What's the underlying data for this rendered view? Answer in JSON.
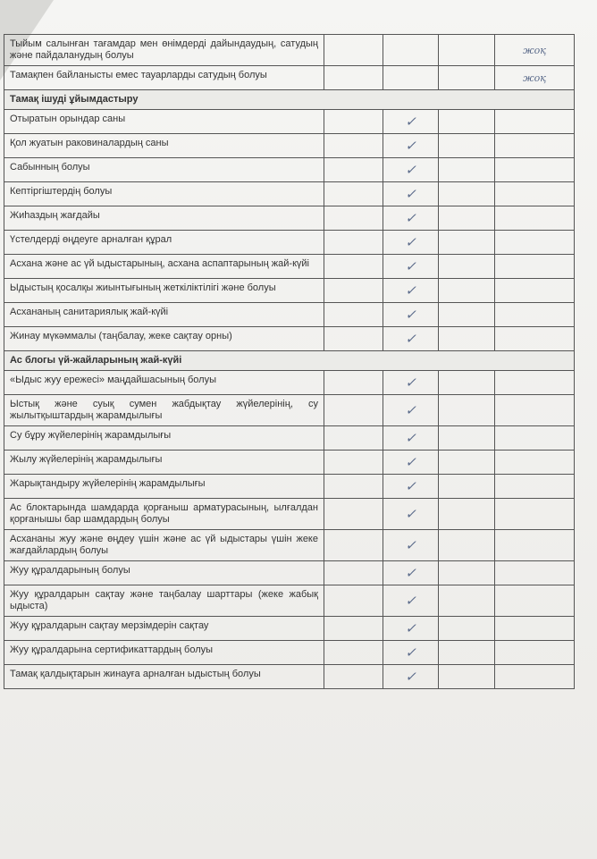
{
  "table": {
    "rows": [
      {
        "label": "Тыйым салынған тағамдар мен өнімдерді дайындаудың, сатудың және пайдаланудың болуы",
        "cells": [
          null,
          null,
          null,
          "жоқ"
        ]
      },
      {
        "label": "Тамақпен байланысты емес тауарларды сатудың болуы",
        "cells": [
          null,
          null,
          null,
          "жоқ"
        ]
      },
      {
        "section": "Тамақ ішуді ұйымдастыру"
      },
      {
        "label": "Отыратын орындар саны",
        "cells": [
          null,
          "✓",
          null,
          null
        ]
      },
      {
        "label": "Қол жуатын раковиналардың саны",
        "cells": [
          null,
          "✓",
          null,
          null
        ]
      },
      {
        "label": "Сабынның болуы",
        "cells": [
          null,
          "✓",
          null,
          null
        ]
      },
      {
        "label": "Кептіргіштердің болуы",
        "cells": [
          null,
          "✓",
          null,
          null
        ]
      },
      {
        "label": "Жиһаздың жағдайы",
        "cells": [
          null,
          "✓",
          null,
          null
        ]
      },
      {
        "label": "Үстелдерді өңдеуге арналған құрал",
        "cells": [
          null,
          "✓",
          null,
          null
        ]
      },
      {
        "label": "Асхана және ас үй ыдыстарының, асхана аспаптарының жай-күйі",
        "cells": [
          null,
          "✓",
          null,
          null
        ]
      },
      {
        "label": "Ыдыстың қосалқы жиынтығының жеткіліктілігі және болуы",
        "cells": [
          null,
          "✓",
          null,
          null
        ]
      },
      {
        "label": "Асхананың санитариялық жай-күйі",
        "cells": [
          null,
          "✓",
          null,
          null
        ]
      },
      {
        "label": "Жинау мүкәммалы (таңбалау, жеке сақтау орны)",
        "cells": [
          null,
          "✓",
          null,
          null
        ]
      },
      {
        "section": "Ас блогы үй-жайларының жай-күйі"
      },
      {
        "label": "«Ыдыс жуу ережесі» маңдайшасының болуы",
        "cells": [
          null,
          "✓",
          null,
          null
        ]
      },
      {
        "label": "Ыстық және суық сумен жабдықтау жүйелерінің, су жылытқыштардың жарамдылығы",
        "cells": [
          null,
          "✓",
          null,
          null
        ]
      },
      {
        "label": "Су бұру жүйелерінің жарамдылығы",
        "cells": [
          null,
          "✓",
          null,
          null
        ]
      },
      {
        "label": "Жылу жүйелерінің жарамдылығы",
        "cells": [
          null,
          "✓",
          null,
          null
        ]
      },
      {
        "label": "Жарықтандыру жүйелерінің жарамдылығы",
        "cells": [
          null,
          "✓",
          null,
          null
        ]
      },
      {
        "label": "Ас блоктарында шамдарда қорғаныш арматурасының, ылғалдан қорғанышы бар шамдардың болуы",
        "cells": [
          null,
          "✓",
          null,
          null
        ]
      },
      {
        "label": "Асхананы жуу және өңдеу үшін және ас үй ыдыстары үшін жеке жағдайлардың болуы",
        "cells": [
          null,
          "✓",
          null,
          null
        ]
      },
      {
        "label": "Жуу құралдарының болуы",
        "cells": [
          null,
          "✓",
          null,
          null
        ]
      },
      {
        "label": "Жуу құралдарын сақтау және таңбалау шарттары (жеке жабық ыдыста)",
        "cells": [
          null,
          "✓",
          null,
          null
        ]
      },
      {
        "label": "Жуу құралдарын сақтау мерзімдерін сақтау",
        "cells": [
          null,
          "✓",
          null,
          null
        ]
      },
      {
        "label": "Жуу құралдарына сертификаттардың болуы",
        "cells": [
          null,
          "✓",
          null,
          null
        ]
      },
      {
        "label": "Тамақ қалдықтарын жинауға арналған ыдыстың болуы",
        "cells": [
          null,
          "✓",
          null,
          null
        ]
      }
    ]
  }
}
